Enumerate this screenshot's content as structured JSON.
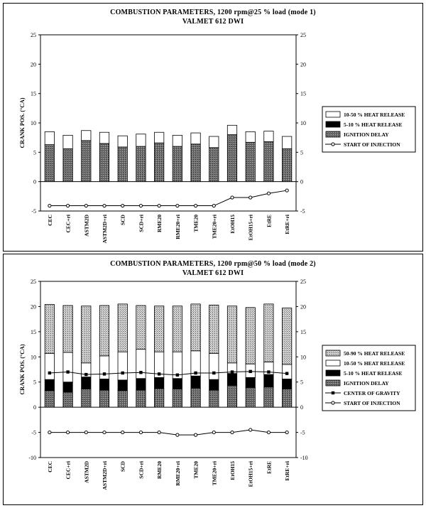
{
  "chart_data": [
    {
      "type": "bar",
      "stacked": true,
      "title": "COMBUSTION PARAMETERS, 1200 rpm@25 % load (mode 1)",
      "subtitle": "VALMET 612 DWI",
      "ylabel": "CRANK POS. (°CA)",
      "ylim": [
        -5,
        25
      ],
      "yticks": [
        -5,
        0,
        5,
        10,
        15,
        20,
        25
      ],
      "right_axis": true,
      "legend_position": "right",
      "categories": [
        "CEC",
        "CEC+ri",
        "ASTM2D",
        "ASTM2D+ri",
        "SCD",
        "SCD+ri",
        "RME20",
        "RME20+ri",
        "TME20",
        "TME20+ri",
        "EtOH15",
        "EtOH15+ri",
        "EtRE",
        "EtRE+ri"
      ],
      "series": [
        {
          "name": "IGNITION DELAY",
          "style": "gray",
          "values": [
            6.3,
            5.6,
            7.0,
            6.5,
            5.9,
            6.0,
            6.6,
            6.0,
            6.4,
            5.8,
            8.0,
            6.7,
            6.8,
            5.6
          ]
        },
        {
          "name": "5-10 % HEAT RELEASE",
          "style": "black",
          "values": [
            0.0,
            0.0,
            0.0,
            0.0,
            0.0,
            0.0,
            0.0,
            0.0,
            0.0,
            0.0,
            0.0,
            0.0,
            0.0,
            0.0
          ]
        },
        {
          "name": "10-50 % HEAT RELEASE",
          "style": "white",
          "values": [
            2.2,
            2.3,
            1.7,
            1.9,
            1.9,
            2.1,
            1.8,
            1.9,
            1.9,
            1.9,
            1.6,
            1.8,
            1.8,
            2.1
          ]
        }
      ],
      "lines": [
        {
          "name": "START OF INJECTION",
          "marker": "circle",
          "values": [
            -4.1,
            -4.1,
            -4.1,
            -4.1,
            -4.1,
            -4.1,
            -4.1,
            -4.1,
            -4.1,
            -4.1,
            -2.7,
            -2.7,
            -2.0,
            -1.5
          ]
        }
      ]
    },
    {
      "type": "bar",
      "stacked": true,
      "title": "COMBUSTION PARAMETERS, 1200 rpm@50 % load (mode 2)",
      "subtitle": "VALMET 612 DWI",
      "ylabel": "CRANK POS. (°CA)",
      "ylim": [
        -10,
        25
      ],
      "yticks": [
        -10,
        -5,
        0,
        5,
        10,
        15,
        20,
        25
      ],
      "right_axis": true,
      "legend_position": "right",
      "categories": [
        "CEC",
        "CEC+ri",
        "ASTM2D",
        "ASTM2D+ri",
        "SCD",
        "SCD+ri",
        "RME20",
        "RME20+ri",
        "TME20",
        "TME20+ri",
        "EtOH15",
        "EtOH15+ri",
        "EtRE",
        "EtRE+ri"
      ],
      "series": [
        {
          "name": "IGNITION DELAY",
          "style": "gray",
          "values": [
            3.3,
            3.0,
            3.6,
            3.4,
            3.3,
            3.4,
            3.7,
            3.6,
            3.8,
            3.4,
            4.3,
            3.9,
            4.0,
            3.6
          ]
        },
        {
          "name": "5-10 % HEAT RELEASE",
          "style": "black",
          "values": [
            2.2,
            2.0,
            2.4,
            2.2,
            2.1,
            2.3,
            2.2,
            2.1,
            2.4,
            2.1,
            2.4,
            2.0,
            2.5,
            2.0
          ]
        },
        {
          "name": "10-50 % HEAT RELEASE",
          "style": "white",
          "values": [
            5.2,
            5.9,
            2.8,
            4.6,
            5.6,
            5.8,
            5.1,
            5.3,
            5.0,
            5.2,
            2.1,
            2.7,
            2.5,
            2.9
          ]
        },
        {
          "name": "50-90 % HEAT RELEASE",
          "style": "stipple",
          "values": [
            9.7,
            9.3,
            11.3,
            10.0,
            9.5,
            8.7,
            9.1,
            9.1,
            9.3,
            9.6,
            11.3,
            11.2,
            11.5,
            11.2
          ]
        }
      ],
      "lines": [
        {
          "name": "CENTER OF GRAVITY",
          "marker": "square",
          "values": [
            6.8,
            7.0,
            6.5,
            6.6,
            6.8,
            6.9,
            6.6,
            6.4,
            6.8,
            6.8,
            7.0,
            7.1,
            7.0,
            6.7
          ]
        },
        {
          "name": "START OF INJECTION",
          "marker": "circle",
          "values": [
            -5.0,
            -5.0,
            -5.0,
            -5.0,
            -5.0,
            -5.0,
            -5.0,
            -5.5,
            -5.5,
            -5.0,
            -5.0,
            -4.5,
            -5.0,
            -5.0
          ]
        }
      ]
    }
  ]
}
